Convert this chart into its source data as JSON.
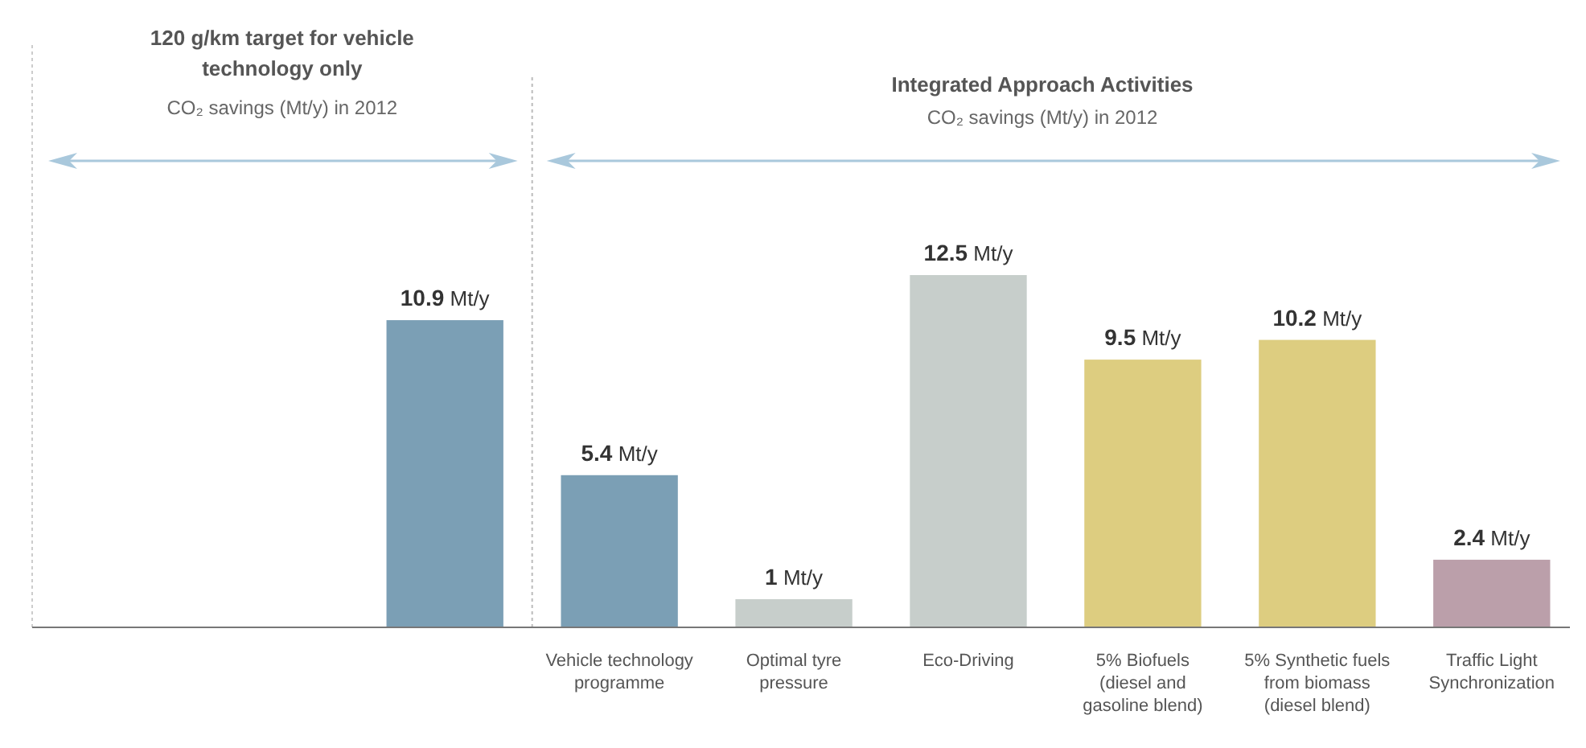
{
  "chart_data": {
    "type": "bar",
    "categories": [
      null,
      "Vehicle technology programme",
      "Optimal tyre pressure",
      "Eco-Driving",
      "5% Biofuels (diesel and gasoline blend)",
      "5% Synthetic fuels from biomass (diesel blend)",
      "Traffic Light Synchronization"
    ],
    "values": [
      10.9,
      5.4,
      1,
      12.5,
      9.5,
      10.2,
      2.4
    ],
    "colors": [
      "#7b9fb5",
      "#7b9fb5",
      "#c7cecb",
      "#c7cecb",
      "#ddcd80",
      "#ddcd80",
      "#bb9faa"
    ],
    "value_labels": [
      "10.9 Mt/y",
      "5.4 Mt/y",
      "1 Mt/y",
      "12.5 Mt/y",
      "9.5 Mt/y",
      "10.2 Mt/y",
      "2.4 Mt/y"
    ],
    "annotations": [
      "120 g/km target for vehicle technology only",
      "CO₂ savings (Mt/y) in 2012",
      "Integrated Approach Activities",
      "CO₂ savings (Mt/y) in 2012"
    ]
  }
}
